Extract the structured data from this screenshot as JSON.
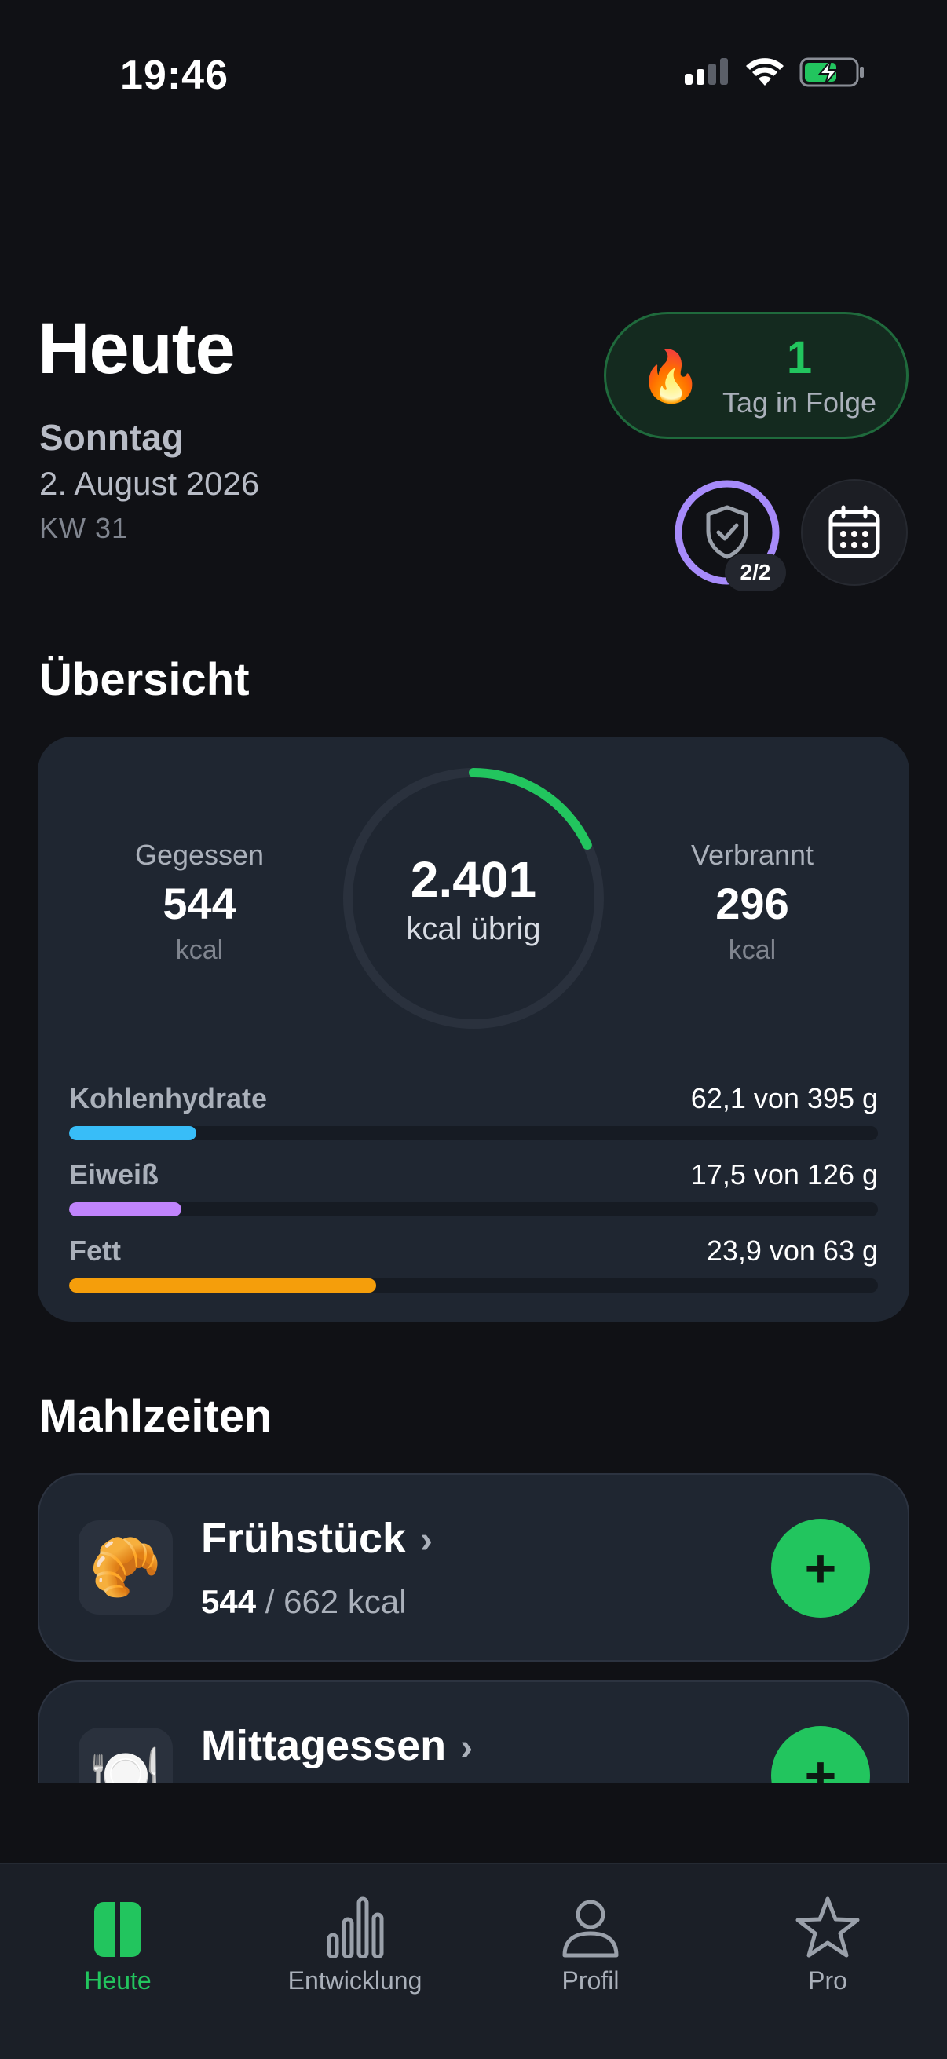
{
  "status_bar": {
    "time": "19:46"
  },
  "header": {
    "title": "Heute",
    "day": "Sonntag",
    "date": "2. August 2026",
    "week": "KW 31"
  },
  "streak": {
    "count": "1",
    "label": "Tag in Folge"
  },
  "shield": {
    "badge": "2/2",
    "fraction": 1.0
  },
  "overview": {
    "title": "Übersicht",
    "eaten": {
      "label": "Gegessen",
      "value": "544",
      "unit": "kcal"
    },
    "burned": {
      "label": "Verbrannt",
      "value": "296",
      "unit": "kcal"
    },
    "remaining": {
      "value": "2.401",
      "label": "kcal übrig",
      "progress": 0.18
    },
    "macros": [
      {
        "name": "Kohlenhydrate",
        "value": "62,1 von 395 g",
        "fraction": 0.157,
        "color": "#38bdf8"
      },
      {
        "name": "Eiweiß",
        "value": "17,5 von 126 g",
        "fraction": 0.139,
        "color": "#c084fc"
      },
      {
        "name": "Fett",
        "value": "23,9 von 63 g",
        "fraction": 0.38,
        "color": "#f59e0b"
      }
    ]
  },
  "meals": {
    "title": "Mahlzeiten",
    "items": [
      {
        "name": "Frühstück",
        "eaten": "544",
        "target": " / 662 kcal",
        "icon": "croissant-icon",
        "emoji": "🥐"
      },
      {
        "name": "Mittagessen",
        "eaten": "",
        "target": "",
        "icon": "plate-icon",
        "emoji": "🍽️"
      }
    ],
    "add_symbol": "+",
    "chevron": "›"
  },
  "tabbar": {
    "items": [
      {
        "label": "Heute",
        "icon": "today-icon"
      },
      {
        "label": "Entwicklung",
        "icon": "chart-icon"
      },
      {
        "label": "Profil",
        "icon": "person-icon"
      },
      {
        "label": "Pro",
        "icon": "star-icon"
      }
    ]
  },
  "colors": {
    "accent": "#22c55e",
    "background": "#101115",
    "card": "#1f2631"
  }
}
